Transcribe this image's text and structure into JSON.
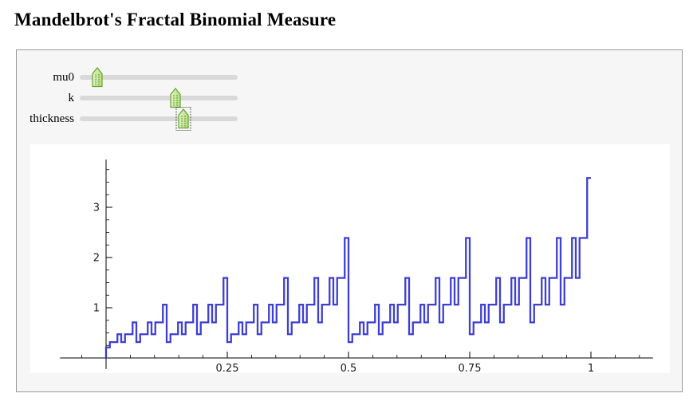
{
  "title": "Mandelbrot's Fractal Binomial Measure",
  "controls": {
    "sliders": [
      {
        "label": "mu0",
        "position_pct": 11.1,
        "focused": false
      },
      {
        "label": "k",
        "position_pct": 60.5,
        "focused": false
      },
      {
        "label": "thickness",
        "position_pct": 65.7,
        "focused": true
      }
    ]
  },
  "colors": {
    "plot_line": "#3434ce",
    "axis": "#000000",
    "slider_track": "#d9d9d9",
    "thumb_border": "#67a22b",
    "thumb_fill_light": "#e3f3cb",
    "thumb_fill_dark": "#b4df81",
    "thumb_dot": "#4d7a1f",
    "panel_bg": "#f6f6f6",
    "panel_border": "#9a9a9a"
  },
  "chart_data": {
    "type": "line",
    "style": "step",
    "title": "",
    "xlabel": "",
    "ylabel": "",
    "legend": null,
    "grid": false,
    "xlim": [
      -0.095,
      1.128
    ],
    "ylim": [
      -0.22,
      3.95
    ],
    "x_ticks": [
      0.25,
      0.5,
      0.75,
      1
    ],
    "x_tick_labels": [
      "0.25",
      "0.5",
      "0.75",
      "1"
    ],
    "y_ticks": [
      1,
      2,
      3
    ],
    "y_tick_labels": [
      "1",
      "2",
      "3"
    ],
    "x_minor_start": -0.05,
    "x_minor_end": 1.1,
    "x_minor_step": 0.05,
    "y_minor_start": 0.25,
    "y_minor_end": 3.75,
    "y_minor_step": 0.25,
    "description": "Binomial cascade measure density at depth k=7 (mu0=0.4, mu1=0.6); value on dyadic interval i is (2*mu0)^zeros(i) * (2*mu1)^ones(i); 128 equal steps on [0,1]",
    "n_intervals": 128,
    "values": [
      0.21,
      0.315,
      0.315,
      0.472,
      0.315,
      0.472,
      0.472,
      0.708,
      0.315,
      0.472,
      0.472,
      0.708,
      0.472,
      0.708,
      0.708,
      1.062,
      0.315,
      0.472,
      0.472,
      0.708,
      0.472,
      0.708,
      0.708,
      1.062,
      0.472,
      0.708,
      0.708,
      1.062,
      0.708,
      1.062,
      1.062,
      1.593,
      0.315,
      0.472,
      0.472,
      0.708,
      0.472,
      0.708,
      0.708,
      1.062,
      0.472,
      0.708,
      0.708,
      1.062,
      0.708,
      1.062,
      1.062,
      1.593,
      0.472,
      0.708,
      0.708,
      1.062,
      0.708,
      1.062,
      1.062,
      1.593,
      0.708,
      1.062,
      1.062,
      1.593,
      1.062,
      1.593,
      1.593,
      2.389,
      0.315,
      0.472,
      0.472,
      0.708,
      0.472,
      0.708,
      0.708,
      1.062,
      0.472,
      0.708,
      0.708,
      1.062,
      0.708,
      1.062,
      1.062,
      1.593,
      0.472,
      0.708,
      0.708,
      1.062,
      0.708,
      1.062,
      1.062,
      1.593,
      0.708,
      1.062,
      1.062,
      1.593,
      1.062,
      1.593,
      1.593,
      2.389,
      0.472,
      0.708,
      0.708,
      1.062,
      0.708,
      1.062,
      1.062,
      1.593,
      0.708,
      1.062,
      1.062,
      1.593,
      1.062,
      1.593,
      1.593,
      2.389,
      0.708,
      1.062,
      1.062,
      1.593,
      1.062,
      1.593,
      1.593,
      2.389,
      1.062,
      1.593,
      1.593,
      2.389,
      1.593,
      2.389,
      2.389,
      3.583
    ]
  }
}
